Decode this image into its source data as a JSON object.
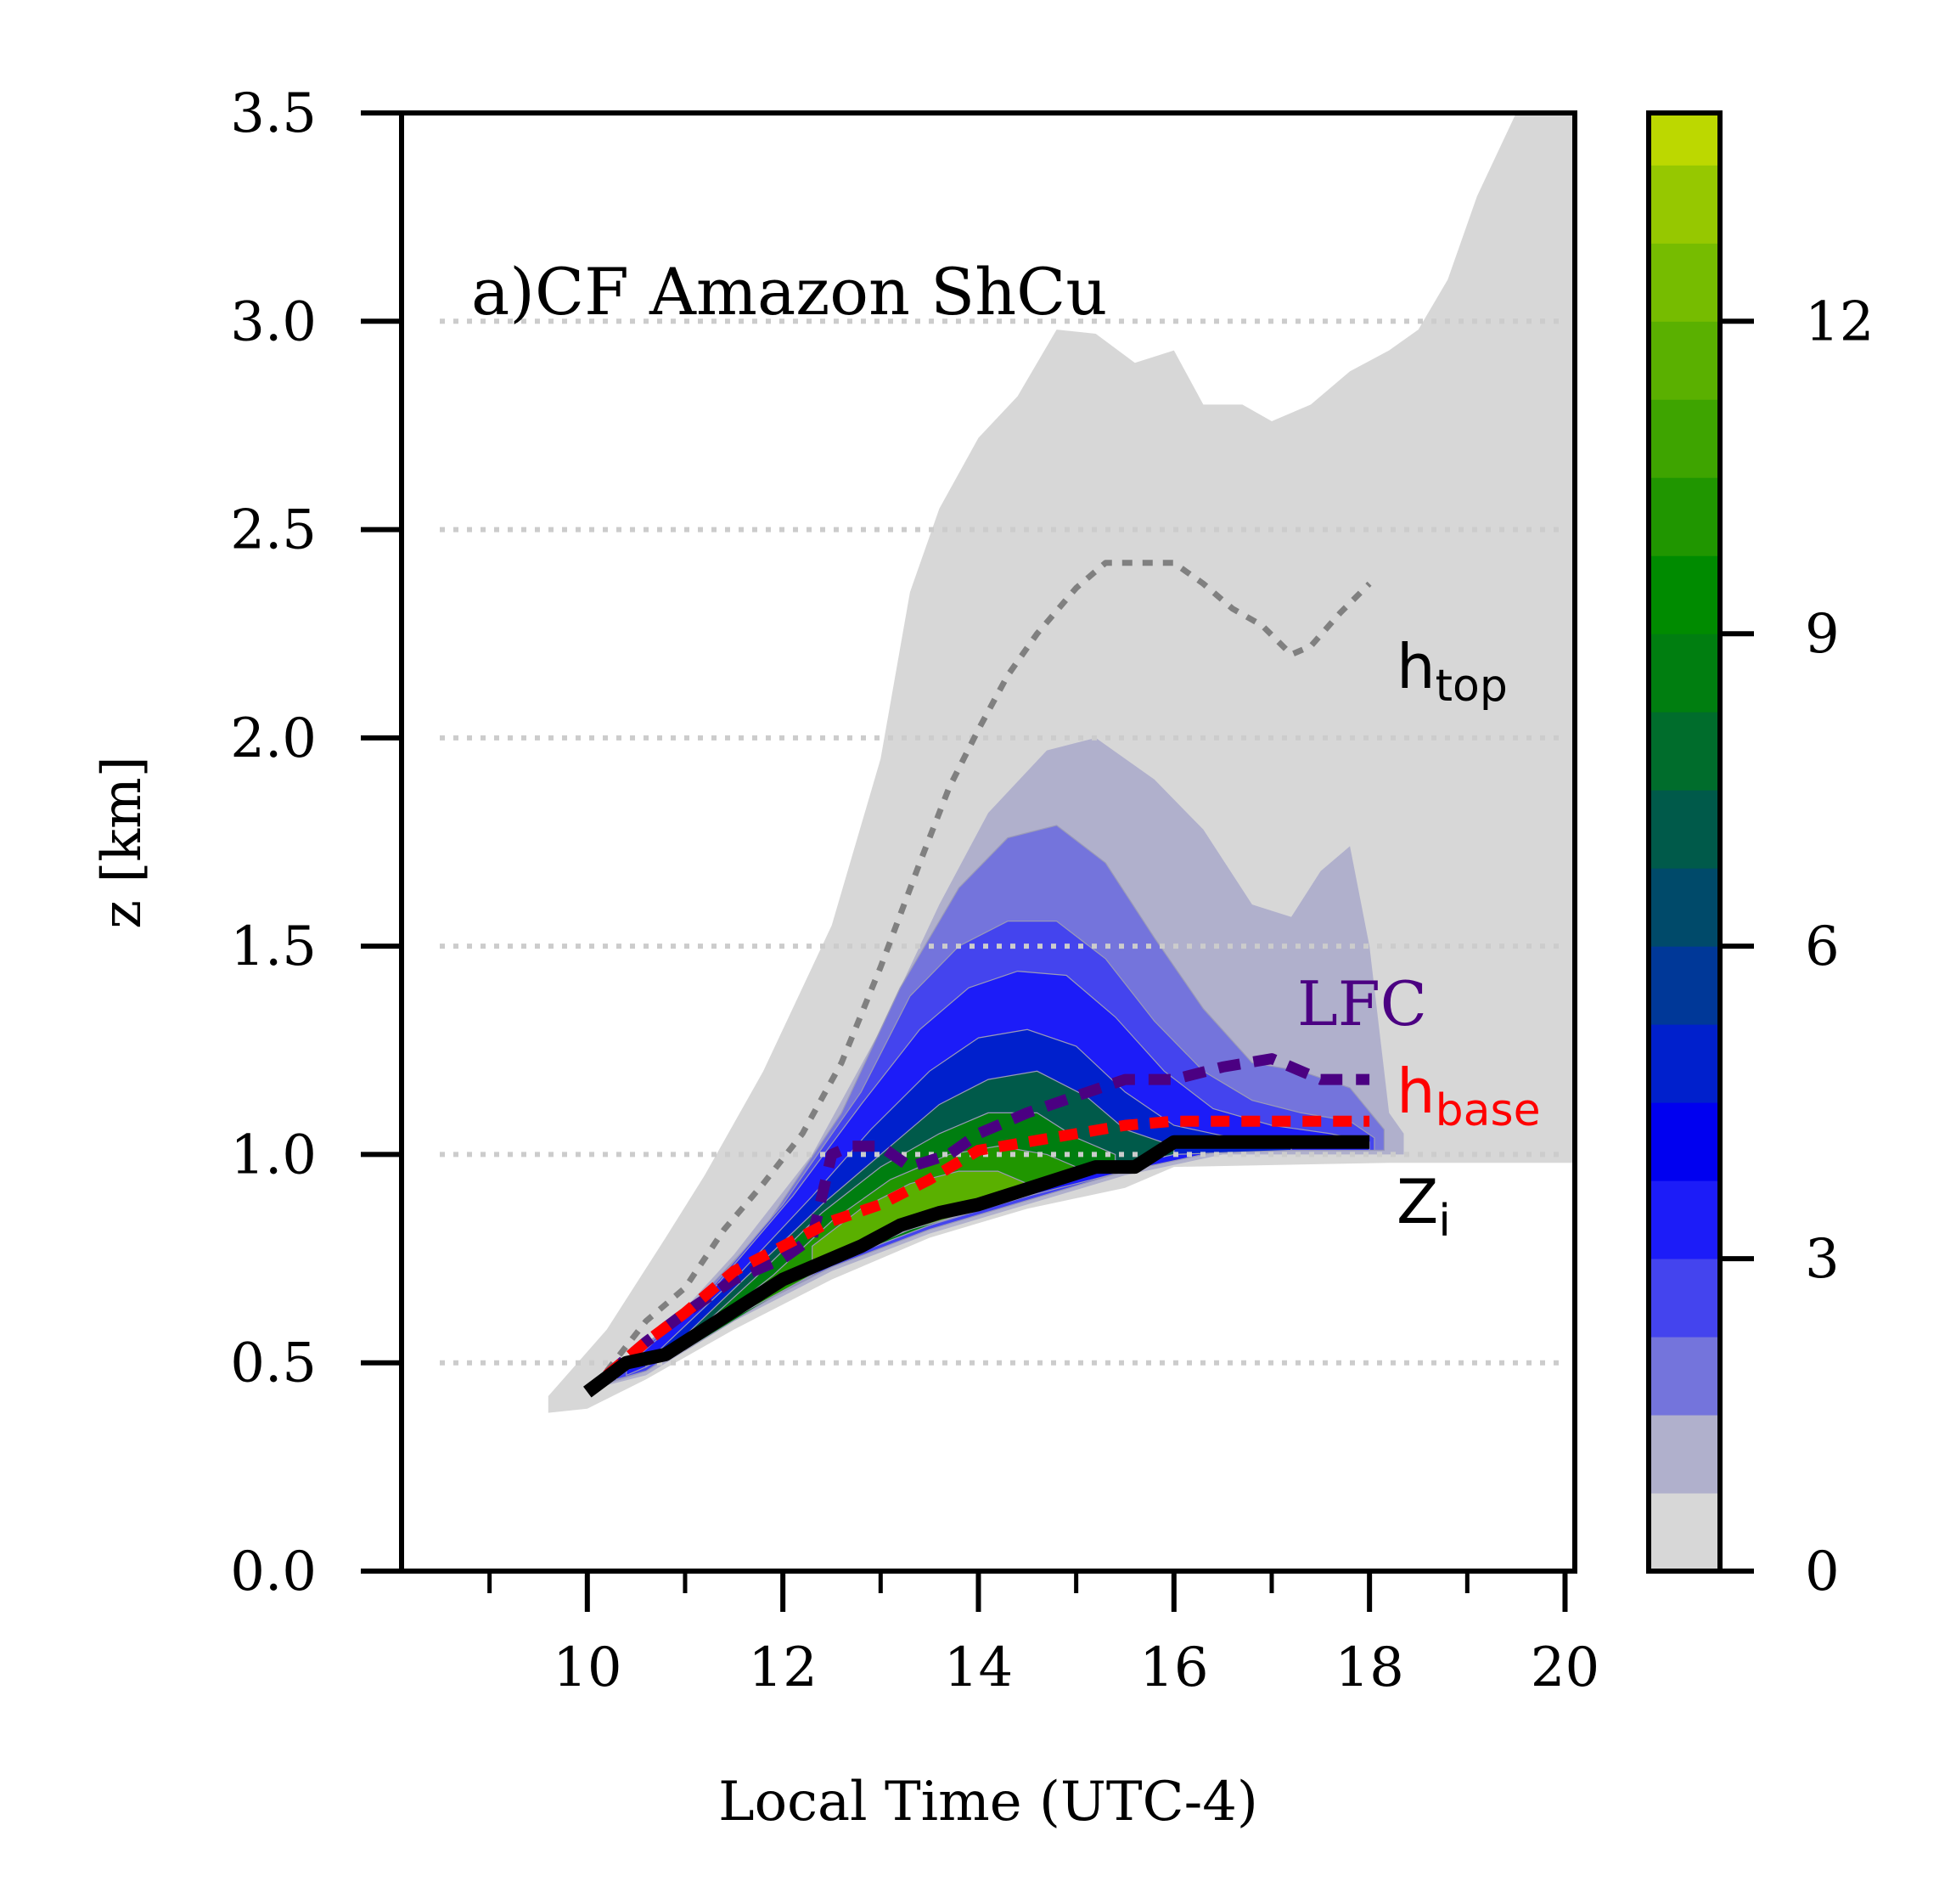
{
  "chart_data": {
    "type": "area",
    "title": "",
    "panel_label": "a)CF Amazon ShCu",
    "xlabel": "Local Time (UTC-4)",
    "ylabel": "z [km]",
    "xlim": [
      8.1,
      20.1
    ],
    "ylim": [
      0.0,
      3.5
    ],
    "xticks": [
      "10",
      "12",
      "14",
      "16",
      "18",
      "20"
    ],
    "xtick_values": [
      10,
      12,
      14,
      16,
      18,
      20
    ],
    "xminor_ticks": [
      9,
      11,
      13,
      15,
      17,
      19
    ],
    "yticks": [
      "0.0",
      "0.5",
      "1.0",
      "1.5",
      "2.0",
      "2.5",
      "3.0",
      "3.5"
    ],
    "ytick_values": [
      0,
      0.5,
      1.0,
      1.5,
      2.0,
      2.5,
      3.0,
      3.5
    ],
    "grid": "horizontal dotted at y ticks",
    "colorbar": {
      "range": [
        0,
        14
      ],
      "ticks": [
        "0",
        "3",
        "6",
        "9",
        "12"
      ],
      "tick_values": [
        0,
        3,
        6,
        9,
        12
      ],
      "levels": [
        0,
        0.75,
        1.5,
        2.25,
        3,
        3.75,
        4.5,
        5.25,
        6,
        6.75,
        7.5,
        8.25,
        9,
        9.75,
        10.5,
        11.25,
        12,
        12.75,
        13.5,
        14
      ],
      "colors": [
        "#d7d7d7",
        "#b0b0cc",
        "#7474dc",
        "#4444ee",
        "#1c1cf8",
        "#0000f0",
        "#0020cc",
        "#003898",
        "#004a6a",
        "#005a4a",
        "#006d2c",
        "#007e10",
        "#008b00",
        "#209600",
        "#3ea400",
        "#5ab000",
        "#76bc00",
        "#96c800",
        "#bcd800",
        "#e0ea00",
        "#f6fa00"
      ]
    },
    "regions": [
      {
        "level": "outer",
        "color": "#d7d7d7",
        "upper": [
          [
            9.6,
            0.42
          ],
          [
            10.2,
            0.58
          ],
          [
            10.8,
            0.8
          ],
          [
            11.2,
            0.95
          ],
          [
            11.8,
            1.2
          ],
          [
            12.5,
            1.55
          ],
          [
            13.0,
            1.95
          ],
          [
            13.3,
            2.35
          ],
          [
            13.6,
            2.55
          ],
          [
            14.0,
            2.72
          ],
          [
            14.4,
            2.82
          ],
          [
            14.8,
            2.98
          ],
          [
            15.2,
            2.97
          ],
          [
            15.6,
            2.9
          ],
          [
            16.0,
            2.93
          ],
          [
            16.3,
            2.8
          ],
          [
            16.7,
            2.8
          ],
          [
            17.0,
            2.76
          ],
          [
            17.4,
            2.8
          ],
          [
            17.8,
            2.88
          ],
          [
            18.2,
            2.93
          ],
          [
            18.5,
            2.98
          ],
          [
            18.8,
            3.1
          ],
          [
            19.1,
            3.3
          ],
          [
            19.4,
            3.45
          ],
          [
            19.6,
            3.55
          ],
          [
            20.1,
            3.55
          ]
        ],
        "lower": [
          [
            20.1,
            0.98
          ],
          [
            18.2,
            0.98
          ],
          [
            16.0,
            0.97
          ],
          [
            15.5,
            0.92
          ],
          [
            14.5,
            0.87
          ],
          [
            13.5,
            0.8
          ],
          [
            12.5,
            0.7
          ],
          [
            11.5,
            0.58
          ],
          [
            10.6,
            0.46
          ],
          [
            10.0,
            0.39
          ],
          [
            9.6,
            0.38
          ]
        ]
      },
      {
        "level": "0.75",
        "color": "#b0b0cc",
        "upper": [
          [
            10.1,
            0.46
          ],
          [
            10.8,
            0.58
          ],
          [
            11.5,
            0.76
          ],
          [
            12.3,
            1.0
          ],
          [
            13.0,
            1.3
          ],
          [
            13.6,
            1.6
          ],
          [
            14.1,
            1.82
          ],
          [
            14.7,
            1.97
          ],
          [
            15.2,
            2.0
          ],
          [
            15.8,
            1.9
          ],
          [
            16.3,
            1.78
          ],
          [
            16.8,
            1.6
          ],
          [
            17.2,
            1.57
          ],
          [
            17.5,
            1.68
          ],
          [
            17.8,
            1.74
          ],
          [
            18.0,
            1.5
          ],
          [
            18.2,
            1.1
          ],
          [
            18.35,
            1.05
          ]
        ],
        "lower": [
          [
            18.35,
            1.0
          ],
          [
            16.5,
            1.0
          ],
          [
            15.5,
            0.95
          ],
          [
            14.5,
            0.88
          ],
          [
            13.5,
            0.81
          ],
          [
            12.5,
            0.72
          ],
          [
            11.5,
            0.6
          ],
          [
            10.6,
            0.47
          ],
          [
            10.1,
            0.44
          ]
        ]
      },
      {
        "level": "1.5",
        "color": "#7474dc",
        "upper": [
          [
            10.2,
            0.47
          ],
          [
            11.0,
            0.62
          ],
          [
            11.8,
            0.82
          ],
          [
            12.6,
            1.1
          ],
          [
            13.2,
            1.4
          ],
          [
            13.8,
            1.64
          ],
          [
            14.3,
            1.76
          ],
          [
            14.8,
            1.79
          ],
          [
            15.3,
            1.7
          ],
          [
            15.8,
            1.52
          ],
          [
            16.3,
            1.35
          ],
          [
            16.8,
            1.22
          ],
          [
            17.3,
            1.2
          ],
          [
            17.8,
            1.16
          ],
          [
            18.15,
            1.06
          ]
        ],
        "lower": [
          [
            18.15,
            1.01
          ],
          [
            16.5,
            1.01
          ],
          [
            15.5,
            0.96
          ],
          [
            14.5,
            0.89
          ],
          [
            13.5,
            0.82
          ],
          [
            12.5,
            0.73
          ],
          [
            11.5,
            0.61
          ],
          [
            10.6,
            0.48
          ],
          [
            10.2,
            0.45
          ]
        ]
      },
      {
        "level": "2.25",
        "color": "#4444ee",
        "upper": [
          [
            10.3,
            0.48
          ],
          [
            11.2,
            0.66
          ],
          [
            12.0,
            0.88
          ],
          [
            12.8,
            1.15
          ],
          [
            13.3,
            1.38
          ],
          [
            13.8,
            1.5
          ],
          [
            14.3,
            1.56
          ],
          [
            14.8,
            1.56
          ],
          [
            15.3,
            1.47
          ],
          [
            15.8,
            1.32
          ],
          [
            16.3,
            1.2
          ],
          [
            16.8,
            1.13
          ],
          [
            17.3,
            1.1
          ],
          [
            17.8,
            1.08
          ],
          [
            18.05,
            1.04
          ]
        ],
        "lower": [
          [
            18.05,
            1.01
          ],
          [
            16.5,
            1.01
          ],
          [
            15.5,
            0.96
          ],
          [
            14.5,
            0.89
          ],
          [
            13.5,
            0.82
          ],
          [
            12.5,
            0.73
          ],
          [
            11.5,
            0.62
          ],
          [
            10.6,
            0.48
          ],
          [
            10.3,
            0.46
          ]
        ]
      },
      {
        "level": "3",
        "color": "#1c1cf8",
        "upper": [
          [
            10.4,
            0.49
          ],
          [
            11.3,
            0.68
          ],
          [
            12.1,
            0.9
          ],
          [
            12.8,
            1.12
          ],
          [
            13.4,
            1.3
          ],
          [
            13.9,
            1.4
          ],
          [
            14.4,
            1.44
          ],
          [
            14.9,
            1.43
          ],
          [
            15.4,
            1.33
          ],
          [
            15.9,
            1.2
          ],
          [
            16.4,
            1.11
          ],
          [
            17.0,
            1.07
          ],
          [
            17.6,
            1.05
          ],
          [
            18.0,
            1.03
          ]
        ],
        "lower": [
          [
            18.0,
            1.01
          ],
          [
            16.5,
            1.01
          ],
          [
            15.5,
            0.96
          ],
          [
            14.5,
            0.9
          ],
          [
            13.5,
            0.83
          ],
          [
            12.5,
            0.74
          ],
          [
            11.5,
            0.62
          ],
          [
            10.6,
            0.49
          ],
          [
            10.4,
            0.47
          ]
        ]
      },
      {
        "level": "4.5",
        "color": "#0020cc",
        "upper": [
          [
            10.6,
            0.5
          ],
          [
            11.5,
            0.7
          ],
          [
            12.3,
            0.9
          ],
          [
            12.9,
            1.06
          ],
          [
            13.5,
            1.2
          ],
          [
            14.0,
            1.28
          ],
          [
            14.5,
            1.3
          ],
          [
            15.0,
            1.26
          ],
          [
            15.5,
            1.15
          ],
          [
            16.0,
            1.07
          ],
          [
            16.6,
            1.04
          ],
          [
            17.2,
            1.03
          ]
        ],
        "lower": [
          [
            17.2,
            1.01
          ],
          [
            16.0,
            1.0
          ],
          [
            15.0,
            0.95
          ],
          [
            14.0,
            0.87
          ],
          [
            13.0,
            0.79
          ],
          [
            12.0,
            0.69
          ],
          [
            11.2,
            0.58
          ],
          [
            10.6,
            0.49
          ]
        ]
      },
      {
        "level": "6",
        "color": "#005a4a",
        "upper": [
          [
            10.8,
            0.52
          ],
          [
            11.6,
            0.7
          ],
          [
            12.4,
            0.88
          ],
          [
            13.0,
            1.0
          ],
          [
            13.6,
            1.12
          ],
          [
            14.1,
            1.18
          ],
          [
            14.6,
            1.2
          ],
          [
            15.1,
            1.14
          ],
          [
            15.5,
            1.06
          ],
          [
            16.0,
            1.02
          ]
        ],
        "lower": [
          [
            16.0,
            1.0
          ],
          [
            15.0,
            0.95
          ],
          [
            14.0,
            0.87
          ],
          [
            13.0,
            0.79
          ],
          [
            12.0,
            0.69
          ],
          [
            11.2,
            0.58
          ],
          [
            10.8,
            0.51
          ]
        ]
      },
      {
        "level": "7.5",
        "color": "#007e10",
        "upper": [
          [
            11.0,
            0.55
          ],
          [
            11.7,
            0.7
          ],
          [
            12.4,
            0.86
          ],
          [
            13.0,
            0.97
          ],
          [
            13.6,
            1.05
          ],
          [
            14.1,
            1.1
          ],
          [
            14.6,
            1.1
          ],
          [
            15.0,
            1.04
          ],
          [
            15.4,
            1.0
          ]
        ],
        "lower": [
          [
            15.4,
            0.97
          ],
          [
            14.5,
            0.91
          ],
          [
            13.5,
            0.83
          ],
          [
            12.5,
            0.74
          ],
          [
            11.7,
            0.63
          ],
          [
            11.0,
            0.53
          ]
        ]
      },
      {
        "level": "9",
        "color": "#209600",
        "upper": [
          [
            11.2,
            0.58
          ],
          [
            11.9,
            0.71
          ],
          [
            12.5,
            0.84
          ],
          [
            13.1,
            0.94
          ],
          [
            13.7,
            1.0
          ],
          [
            14.2,
            1.02
          ],
          [
            14.7,
            1.0
          ],
          [
            15.0,
            0.97
          ]
        ],
        "lower": [
          [
            15.0,
            0.95
          ],
          [
            14.2,
            0.9
          ],
          [
            13.4,
            0.83
          ],
          [
            12.6,
            0.75
          ],
          [
            11.9,
            0.66
          ],
          [
            11.2,
            0.57
          ]
        ]
      },
      {
        "level": "10.5",
        "color": "#5ab000",
        "upper": [
          [
            12.3,
            0.78
          ],
          [
            12.8,
            0.87
          ],
          [
            13.3,
            0.93
          ],
          [
            13.8,
            0.96
          ],
          [
            14.2,
            0.96
          ],
          [
            14.5,
            0.93
          ]
        ],
        "lower": [
          [
            14.5,
            0.9
          ],
          [
            13.9,
            0.86
          ],
          [
            13.3,
            0.82
          ],
          [
            12.8,
            0.78
          ],
          [
            12.3,
            0.74
          ]
        ]
      }
    ],
    "series": [
      {
        "name": "h_top",
        "color": "#808080",
        "style": "dotted",
        "x": [
          10.2,
          10.6,
          11.0,
          11.4,
          11.8,
          12.2,
          12.6,
          13.0,
          13.4,
          13.7,
          14.0,
          14.3,
          14.6,
          15.0,
          15.3,
          15.6,
          16.0,
          16.3,
          16.6,
          16.9,
          17.2,
          17.4,
          17.7,
          18.0
        ],
        "y": [
          0.48,
          0.6,
          0.68,
          0.82,
          0.93,
          1.05,
          1.22,
          1.45,
          1.7,
          1.88,
          2.02,
          2.15,
          2.25,
          2.36,
          2.42,
          2.42,
          2.42,
          2.37,
          2.31,
          2.27,
          2.2,
          2.22,
          2.3,
          2.37
        ]
      },
      {
        "name": "LFC",
        "color": "#4b0082",
        "style": "dashed",
        "x": [
          10.2,
          10.6,
          11.0,
          11.5,
          12.0,
          12.3,
          12.5,
          12.7,
          13.0,
          13.3,
          13.7,
          14.0,
          14.5,
          15.0,
          15.5,
          16.0,
          16.5,
          17.0,
          17.5,
          18.0
        ],
        "y": [
          0.47,
          0.55,
          0.62,
          0.7,
          0.75,
          0.8,
          1.0,
          1.02,
          1.02,
          0.97,
          1.0,
          1.05,
          1.1,
          1.14,
          1.18,
          1.18,
          1.21,
          1.23,
          1.18,
          1.18
        ]
      },
      {
        "name": "h_base",
        "color": "#ff0000",
        "style": "dashed",
        "x": [
          10.2,
          10.6,
          11.0,
          11.5,
          12.0,
          12.5,
          13.0,
          13.5,
          14.0,
          14.5,
          15.0,
          15.5,
          16.0,
          16.5,
          17.0,
          17.5,
          18.0
        ],
        "y": [
          0.47,
          0.55,
          0.62,
          0.72,
          0.78,
          0.84,
          0.88,
          0.94,
          1.01,
          1.03,
          1.05,
          1.07,
          1.08,
          1.08,
          1.08,
          1.08,
          1.08
        ]
      },
      {
        "name": "Z_i",
        "color": "#000000",
        "style": "solid",
        "x": [
          10.0,
          10.4,
          10.8,
          11.2,
          11.6,
          12.0,
          12.4,
          12.8,
          13.2,
          13.6,
          14.0,
          14.4,
          14.8,
          15.2,
          15.6,
          16.0,
          16.5,
          17.0,
          17.5,
          18.0
        ],
        "y": [
          0.43,
          0.5,
          0.52,
          0.58,
          0.64,
          0.7,
          0.74,
          0.78,
          0.83,
          0.86,
          0.88,
          0.91,
          0.94,
          0.97,
          0.97,
          1.03,
          1.03,
          1.03,
          1.03,
          1.03
        ]
      }
    ],
    "labels": {
      "h_top": {
        "base": "h",
        "sub": "top",
        "color": "#000000"
      },
      "LFC": {
        "text": "LFC",
        "color": "#4b0082"
      },
      "h_base": {
        "base": "h",
        "sub": "base",
        "color": "#ff0000"
      },
      "Z_i": {
        "base": "Z",
        "sub": "i",
        "color": "#000000"
      }
    }
  }
}
